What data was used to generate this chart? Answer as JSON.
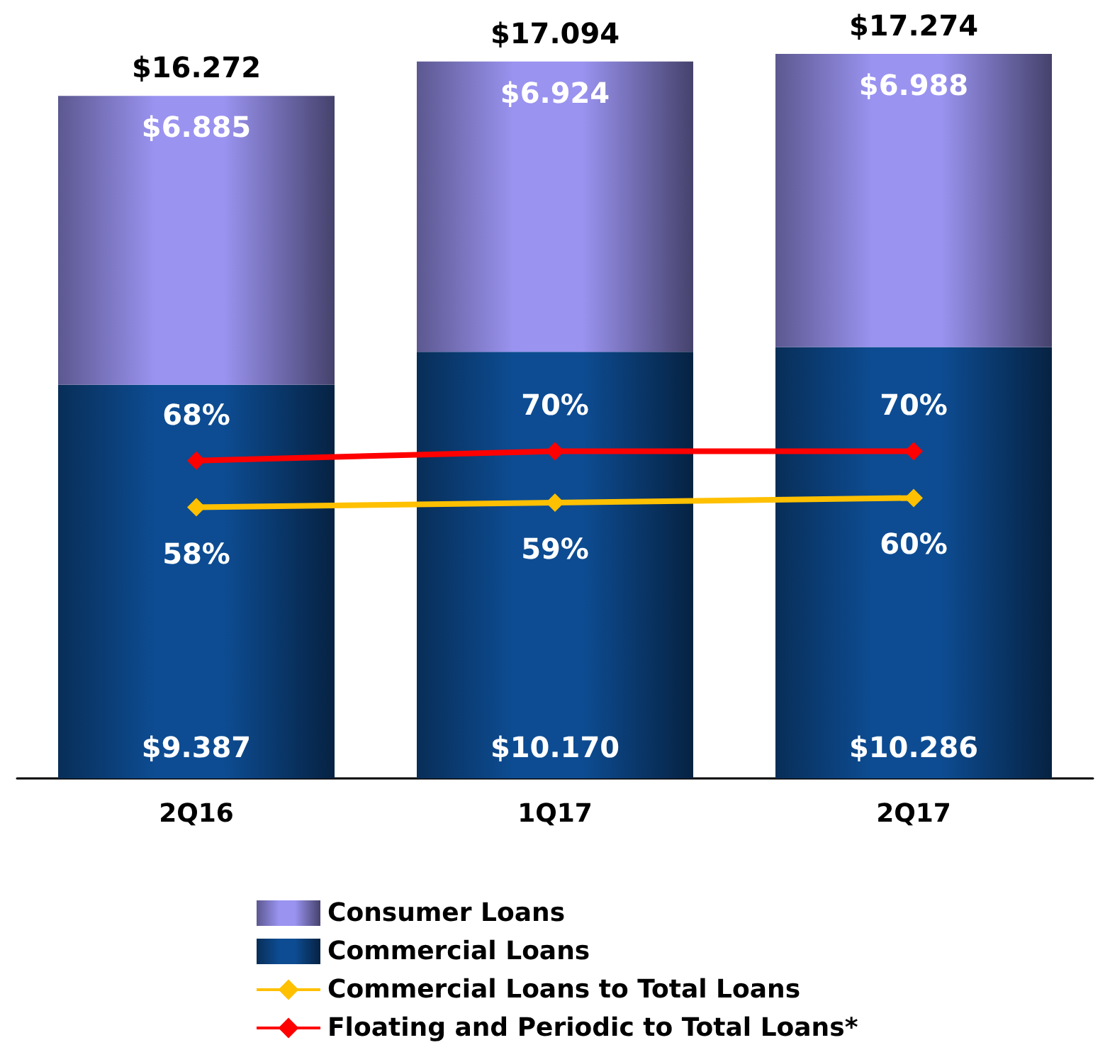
{
  "chart_data": {
    "type": "bar",
    "stacked": true,
    "categories": [
      "2Q16",
      "1Q17",
      "2Q17"
    ],
    "series": [
      {
        "name": "Commercial Loans",
        "color": "#0d4c92",
        "values": [
          9.387,
          10.17,
          10.286
        ],
        "value_labels": [
          "$9.387",
          "$10.170",
          "$10.286"
        ]
      },
      {
        "name": "Consumer Loans",
        "color": "#9a93f0",
        "values": [
          6.885,
          6.924,
          6.988
        ],
        "value_labels": [
          "$6.885",
          "$6.924",
          "$6.988"
        ]
      },
      {
        "name": "Commercial Loans to Total Loans",
        "type": "line",
        "axis": "y2",
        "color": "#ffc000",
        "values": [
          58,
          59,
          60
        ],
        "value_labels": [
          "58%",
          "59%",
          "60%"
        ]
      },
      {
        "name": "Floating and Periodic to Total Loans*",
        "type": "line",
        "axis": "y2",
        "color": "#ff0000",
        "values": [
          68,
          70,
          70
        ],
        "value_labels": [
          "68%",
          "70%",
          "70%"
        ]
      }
    ],
    "totals": [
      "$16.272",
      "$17.094",
      "$17.274"
    ],
    "ylim": [
      0,
      17.274
    ],
    "y2lim": [
      0,
      155
    ],
    "marker": "diamond",
    "legend": "bottom"
  }
}
